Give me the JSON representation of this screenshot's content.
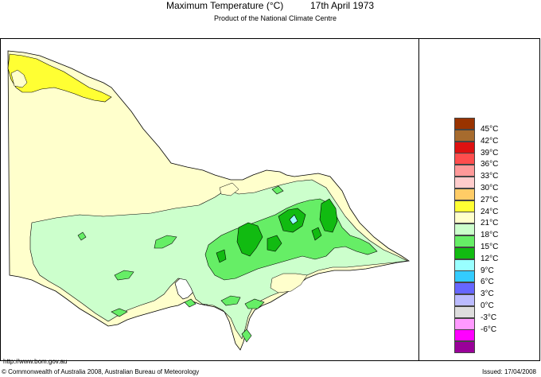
{
  "title": {
    "main": "Maximum Temperature (°C)",
    "date": "17th April 1973"
  },
  "subtitle": "Product of the National Climate Centre",
  "legend": [
    {
      "label": "45°C",
      "color": "#993300"
    },
    {
      "label": "42°C",
      "color": "#a66b2e"
    },
    {
      "label": "39°C",
      "color": "#dd1111"
    },
    {
      "label": "36°C",
      "color": "#ff4d4d"
    },
    {
      "label": "33°C",
      "color": "#ff9999"
    },
    {
      "label": "30°C",
      "color": "#ffcccc"
    },
    {
      "label": "27°C",
      "color": "#ffcc66"
    },
    {
      "label": "24°C",
      "color": "#ffff33"
    },
    {
      "label": "21°C",
      "color": "#ffffcc"
    },
    {
      "label": "18°C",
      "color": "#ccffcc"
    },
    {
      "label": "15°C",
      "color": "#66ee66"
    },
    {
      "label": "12°C",
      "color": "#11bb11"
    },
    {
      "label": "9°C",
      "color": "#99ffff"
    },
    {
      "label": "6°C",
      "color": "#33ccff"
    },
    {
      "label": "3°C",
      "color": "#6666ff"
    },
    {
      "label": "0°C",
      "color": "#bbbbff"
    },
    {
      "label": "-3°C",
      "color": "#dddddd"
    },
    {
      "label": "-6°C",
      "color": "#ff99ff"
    },
    {
      "label": "",
      "color": "#ff00ff"
    },
    {
      "label": "",
      "color": "#990099"
    }
  ],
  "footer": {
    "url": "http://www.bom.gov.au",
    "copyright": "© Commonwealth of Australia 2008, Australian Bureau of Meteorology",
    "issued": "Issued: 17/04/2008"
  }
}
